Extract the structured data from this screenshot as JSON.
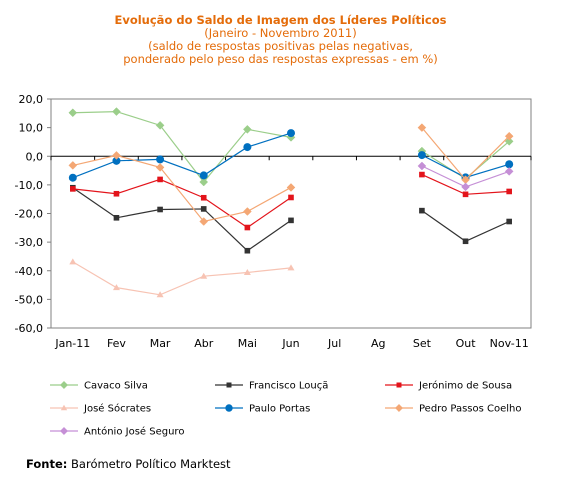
{
  "chart_data": {
    "type": "line",
    "title": "Evolução do Saldo  de Imagem dos Líderes Políticos",
    "subtitle_lines": [
      "(Janeiro - Novembro 2011)",
      "(saldo de respostas positivas pelas negativas,",
      "ponderado pelo peso das respostas expressas - em %)"
    ],
    "categories": [
      "Jan-11",
      "Fev",
      "Mar",
      "Abr",
      "Mai",
      "Jun",
      "Jul",
      "Ag",
      "Set",
      "Out",
      "Nov-11"
    ],
    "y_tick_labels": [
      "20,0",
      "10,0",
      "0,0",
      "-10,0",
      "-20,0",
      "-30,0",
      "-40,0",
      "-50,0",
      "-60,0"
    ],
    "ylim": [
      -60,
      20
    ],
    "y_step": 10,
    "grid": false,
    "legend_position": "bottom",
    "series": [
      {
        "name": "Cavaco Silva",
        "color": "#9bce8a",
        "marker": "diamond",
        "values": [
          15.2,
          15.6,
          10.8,
          -9.0,
          9.4,
          6.6,
          null,
          null,
          1.8,
          -7.8,
          5.2
        ]
      },
      {
        "name": "Francisco Louçã",
        "color": "#333333",
        "marker": "square",
        "values": [
          -11.0,
          -21.5,
          -18.6,
          -18.4,
          -33.0,
          -22.4,
          null,
          null,
          -19.0,
          -29.7,
          -22.8
        ]
      },
      {
        "name": "Jerónimo de Sousa",
        "color": "#e3141b",
        "marker": "square",
        "values": [
          -11.4,
          -13.1,
          -8.1,
          -14.5,
          -24.9,
          -14.4,
          null,
          null,
          -6.4,
          -13.3,
          -12.3
        ]
      },
      {
        "name": "José Sócrates",
        "color": "#f7c3b3",
        "marker": "triangle",
        "values": [
          -36.9,
          -45.9,
          -48.4,
          -41.9,
          -40.6,
          -39.0,
          null,
          null,
          null,
          null,
          null
        ]
      },
      {
        "name": "Paulo Portas",
        "color": "#0070c0",
        "marker": "circle",
        "values": [
          -7.5,
          -1.6,
          -1.1,
          -6.7,
          3.2,
          8.1,
          null,
          null,
          0.4,
          -7.4,
          -2.8
        ]
      },
      {
        "name": "Pedro Passos Coelho",
        "color": "#f4a774",
        "marker": "diamond",
        "values": [
          -3.2,
          0.3,
          -3.9,
          -22.8,
          -19.3,
          -10.9,
          null,
          null,
          10.0,
          -8.2,
          7.0
        ]
      },
      {
        "name": "António José Seguro",
        "color": "#c58fd6",
        "marker": "diamond",
        "values": [
          null,
          null,
          null,
          null,
          null,
          null,
          null,
          null,
          -3.4,
          -10.7,
          -5.3
        ]
      }
    ]
  },
  "source": {
    "label": "Fonte:",
    "text": "Barómetro Político Marktest"
  }
}
